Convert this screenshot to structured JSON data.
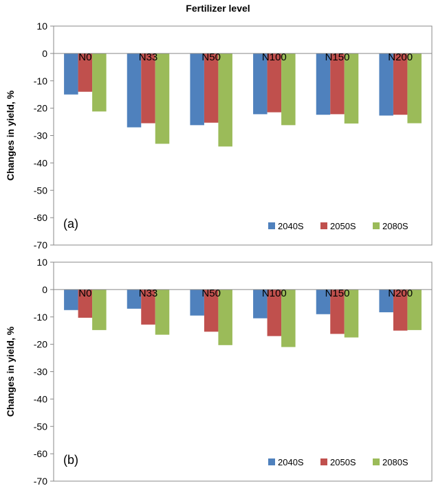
{
  "page_title": "Fertilizer level",
  "chart_data": [
    {
      "type": "bar",
      "panel_label": "(a)",
      "ylabel": "Changes in yield, %",
      "ylim": [
        -70,
        10
      ],
      "yticks": [
        10,
        0,
        -10,
        -20,
        -30,
        -40,
        -50,
        -60,
        -70
      ],
      "categories": [
        "N0",
        "N33",
        "N50",
        "N100",
        "N150",
        "N200"
      ],
      "series": [
        {
          "name": "2040S",
          "color": "#4f81bd",
          "values": [
            -15,
            -27,
            -26.2,
            -22.2,
            -22.4,
            -22.7
          ]
        },
        {
          "name": "2050S",
          "color": "#c0504d",
          "values": [
            -14,
            -25.5,
            -25.3,
            -21.5,
            -22.2,
            -22.4
          ]
        },
        {
          "name": "2080S",
          "color": "#9bbb59",
          "values": [
            -21.2,
            -33,
            -34,
            -26.2,
            -25.6,
            -25.5
          ]
        }
      ],
      "legend_position": "bottom-right"
    },
    {
      "type": "bar",
      "panel_label": "(b)",
      "ylabel": "Changes in yield, %",
      "ylim": [
        -70,
        10
      ],
      "yticks": [
        10,
        0,
        -10,
        -20,
        -30,
        -40,
        -50,
        -60,
        -70
      ],
      "categories": [
        "N0",
        "N33",
        "N50",
        "N100",
        "N150",
        "N200"
      ],
      "series": [
        {
          "name": "2040S",
          "color": "#4f81bd",
          "values": [
            -7.5,
            -7,
            -9.5,
            -10.5,
            -9,
            -8.3
          ]
        },
        {
          "name": "2050S",
          "color": "#c0504d",
          "values": [
            -10.3,
            -12.8,
            -15.4,
            -17,
            -16.2,
            -15
          ]
        },
        {
          "name": "2080S",
          "color": "#9bbb59",
          "values": [
            -14.8,
            -16.5,
            -20.3,
            -21,
            -17.5,
            -14.8
          ]
        }
      ],
      "legend_position": "bottom-right"
    }
  ]
}
